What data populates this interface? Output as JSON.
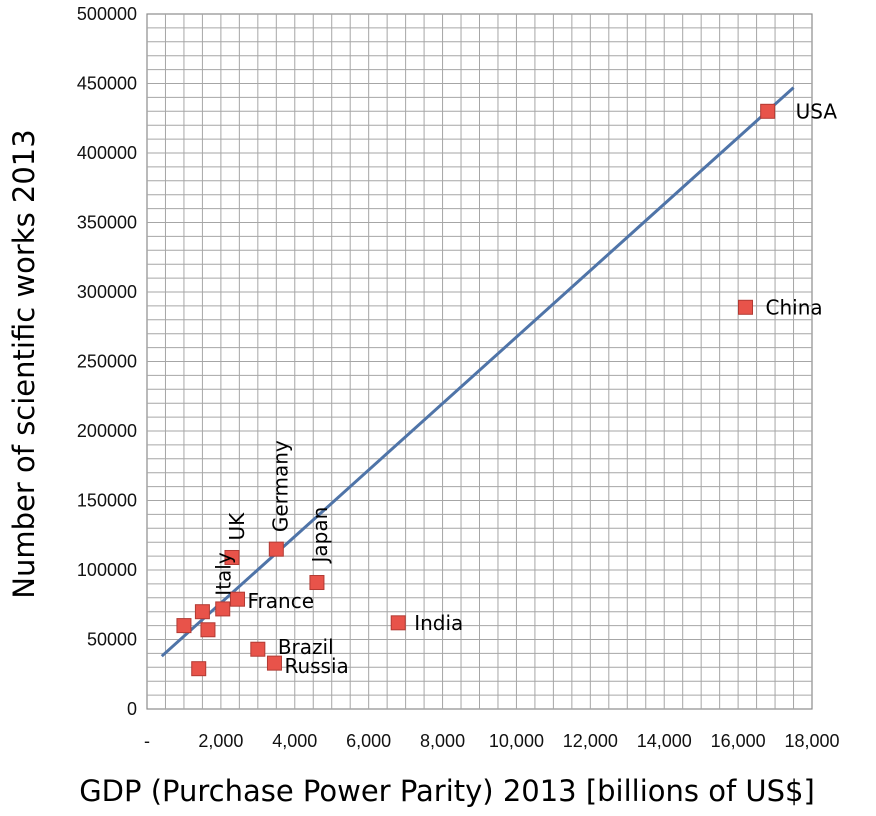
{
  "chart_data": {
    "type": "scatter",
    "xlabel": "GDP (Purchase Power Parity) 2013 [billions of US$]",
    "ylabel": "Number of scientific works 2013",
    "xlim": [
      0,
      18000
    ],
    "ylim": [
      0,
      500000
    ],
    "x_tick_labels": [
      "-",
      "2,000",
      "4,000",
      "6,000",
      "8,000",
      "10,000",
      "12,000",
      "14,000",
      "16,000",
      "18,000"
    ],
    "x_ticks": [
      0,
      2000,
      4000,
      6000,
      8000,
      10000,
      12000,
      14000,
      16000,
      18000
    ],
    "y_tick_labels": [
      "0",
      "50000",
      "100000",
      "150000",
      "200000",
      "250000",
      "300000",
      "350000",
      "400000",
      "450000",
      "500000"
    ],
    "y_ticks": [
      0,
      50000,
      100000,
      150000,
      200000,
      250000,
      300000,
      350000,
      400000,
      450000,
      500000
    ],
    "grid": true,
    "marker_color": "#e8534a",
    "trendline_color": "#4f74a8",
    "trendline": {
      "x": [
        400,
        17500
      ],
      "y": [
        38000,
        447000
      ]
    },
    "points": [
      {
        "label": "USA",
        "x": 16800,
        "y": 430000
      },
      {
        "label": "China",
        "x": 16200,
        "y": 289000
      },
      {
        "label": "India",
        "x": 6800,
        "y": 62000
      },
      {
        "label": "Japan",
        "x": 4600,
        "y": 91000
      },
      {
        "label": "Germany",
        "x": 3500,
        "y": 115000
      },
      {
        "label": "UK",
        "x": 2300,
        "y": 109000
      },
      {
        "label": "Italy",
        "x": 1500,
        "y": 70000
      },
      {
        "label": "France",
        "x": 2450,
        "y": 79000
      },
      {
        "label": "Brazil",
        "x": 3000,
        "y": 43000
      },
      {
        "label": "Russia",
        "x": 3450,
        "y": 33000
      },
      {
        "label": "",
        "x": 1000,
        "y": 60000
      },
      {
        "label": "",
        "x": 2050,
        "y": 72000
      },
      {
        "label": "",
        "x": 1650,
        "y": 57000
      },
      {
        "label": "",
        "x": 1400,
        "y": 29000
      }
    ]
  }
}
